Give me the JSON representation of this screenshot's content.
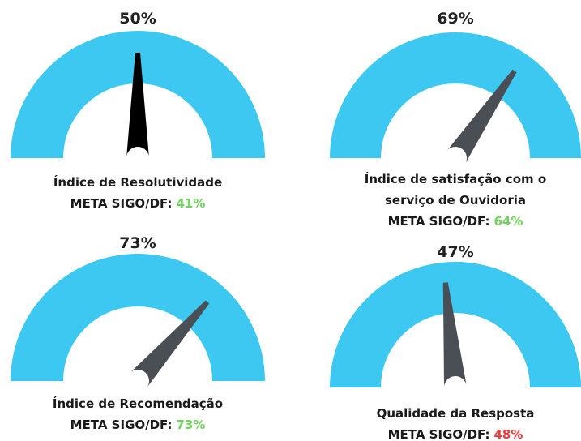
{
  "chart_data": [
    {
      "type": "gauge",
      "value": 50,
      "value_label": "50%",
      "ylim": [
        0,
        100
      ],
      "arc_color": "#3cc8f0",
      "needle_color": "#000000",
      "title": [
        "Índice de Resolutividade"
      ],
      "meta_label": "META SIGO/DF:",
      "meta": 41,
      "meta_value_label": "41%",
      "meta_color": "#6dd35b"
    },
    {
      "type": "gauge",
      "value": 69,
      "value_label": "69%",
      "ylim": [
        0,
        100
      ],
      "arc_color": "#3cc8f0",
      "needle_color": "#4a4f55",
      "title": [
        "Índice de satisfação com o",
        "serviço de Ouvidoria"
      ],
      "meta_label": "META SIGO/DF:",
      "meta": 64,
      "meta_value_label": "64%",
      "meta_color": "#6dd35b"
    },
    {
      "type": "gauge",
      "value": 73,
      "value_label": "73%",
      "ylim": [
        0,
        100
      ],
      "arc_color": "#3cc8f0",
      "needle_color": "#4a4f55",
      "title": [
        "Índice de Recomendação"
      ],
      "meta_label": "META SIGO/DF:",
      "meta": 73,
      "meta_value_label": "73%",
      "meta_color": "#6dd35b"
    },
    {
      "type": "gauge",
      "value": 47,
      "value_label": "47%",
      "ylim": [
        0,
        100
      ],
      "arc_color": "#3cc8f0",
      "needle_color": "#4a4f55",
      "title": [
        "Qualidade da Resposta"
      ],
      "meta_label": "META SIGO/DF:",
      "meta": 48,
      "meta_value_label": "48%",
      "meta_color": "#f23a3a"
    }
  ]
}
